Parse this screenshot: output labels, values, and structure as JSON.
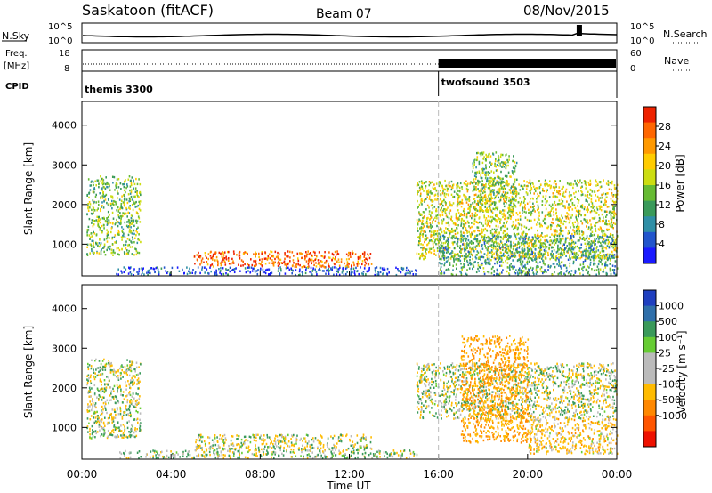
{
  "header": {
    "station": "Saskatoon (fitACF)",
    "beam": "Beam 07",
    "date": "08/Nov/2015"
  },
  "noise_panel": {
    "left_label": "N.Sky",
    "right_label": "N.Search",
    "yticks": [
      "10^5",
      "10^0"
    ],
    "right_yticks": [
      "10^5",
      "10^0"
    ]
  },
  "freq_panel": {
    "left_label_top": "Freq.",
    "left_label_bottom": "[MHz]",
    "right_label": "Nave",
    "yticks": [
      "18",
      "8"
    ],
    "right_yticks": [
      "60",
      "0"
    ],
    "nave_change_hour": 16.0
  },
  "cpid_panel": {
    "label": "CPID",
    "segments": [
      {
        "name": "themis 3300",
        "start_hour": 0
      },
      {
        "name": "twofsound 3503",
        "start_hour": 16
      }
    ]
  },
  "chart_data": [
    {
      "type": "heatmap",
      "quantity": "power",
      "xlabel": "Time UT",
      "ylabel": "Slant Range [km]",
      "xlim_hours": [
        0,
        24
      ],
      "ylim": [
        200,
        4600
      ],
      "xticks": [
        "00:00",
        "04:00",
        "08:00",
        "12:00",
        "16:00",
        "20:00",
        "00:00"
      ],
      "yticks": [
        1000,
        2000,
        3000,
        4000
      ],
      "colorbar": {
        "label": "Power [dB]",
        "ticks": [
          "4",
          "8",
          "12",
          "16",
          "20",
          "24",
          "28"
        ],
        "colors": [
          "#1a1aff",
          "#2255cc",
          "#2f8fa6",
          "#3a9a5a",
          "#66bb33",
          "#ccdd11",
          "#ffcc00",
          "#ff9900",
          "#ff6600",
          "#ee2200"
        ]
      },
      "regions": [
        {
          "t0": 0.2,
          "t1": 2.6,
          "r0": 700,
          "r1": 2700,
          "level": 4
        },
        {
          "t0": 1.5,
          "t1": 15.0,
          "r0": 200,
          "r1": 400,
          "level": 1
        },
        {
          "t0": 5.0,
          "t1": 13.0,
          "r0": 400,
          "r1": 800,
          "level": 8
        },
        {
          "t0": 15.0,
          "t1": 24.0,
          "r0": 600,
          "r1": 2600,
          "level": 5
        },
        {
          "t0": 17.5,
          "t1": 19.5,
          "r0": 1800,
          "r1": 3300,
          "level": 4
        },
        {
          "t0": 16.0,
          "t1": 24.0,
          "r0": 200,
          "r1": 1200,
          "level": 3
        }
      ]
    },
    {
      "type": "heatmap",
      "quantity": "velocity",
      "xlabel": "Time UT",
      "ylabel": "Slant Range [km]",
      "xlim_hours": [
        0,
        24
      ],
      "ylim": [
        200,
        4600
      ],
      "xticks": [
        "00:00",
        "04:00",
        "08:00",
        "12:00",
        "16:00",
        "20:00",
        "00:00"
      ],
      "yticks": [
        1000,
        2000,
        3000,
        4000
      ],
      "colorbar": {
        "label": "Velocity [m s⁻¹]",
        "ticks": [
          "1000",
          "500",
          "100",
          "25",
          "-25",
          "-100",
          "-500",
          "-1000"
        ],
        "colors": [
          "#1f3fbf",
          "#2f6faa",
          "#3a9a5a",
          "#66cc33",
          "#bbbbbb",
          "#bbbbbb",
          "#ffbb00",
          "#ff8800",
          "#ff5500",
          "#ee1100"
        ]
      },
      "regions": [
        {
          "t0": 0.2,
          "t1": 2.6,
          "r0": 700,
          "r1": 2700,
          "vel": 0
        },
        {
          "t0": 1.5,
          "t1": 15.0,
          "r0": 200,
          "r1": 400,
          "vel": 50
        },
        {
          "t0": 5.0,
          "t1": 13.0,
          "r0": 400,
          "r1": 800,
          "vel": -50
        },
        {
          "t0": 15.0,
          "t1": 24.0,
          "r0": 1200,
          "r1": 2600,
          "vel": 0
        },
        {
          "t0": 17.0,
          "t1": 20.0,
          "r0": 600,
          "r1": 3300,
          "vel": -300
        },
        {
          "t0": 20.0,
          "t1": 24.0,
          "r0": 300,
          "r1": 1200,
          "vel": -150
        }
      ]
    }
  ]
}
